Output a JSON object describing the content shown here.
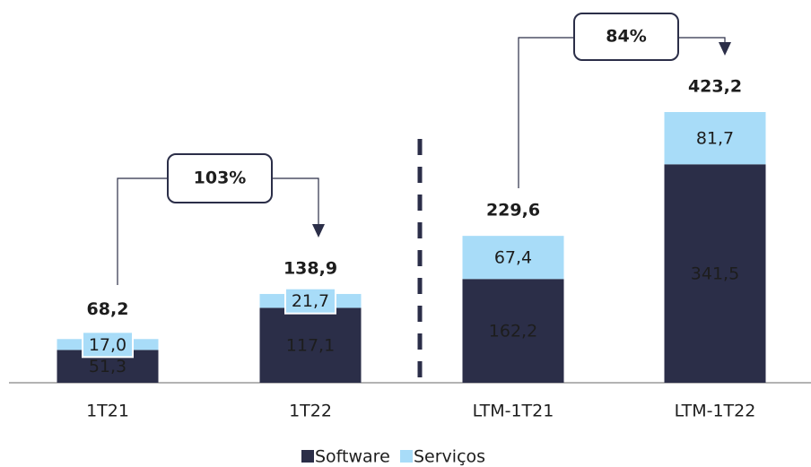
{
  "chart_data": {
    "type": "stacked_bar",
    "categories": [
      "1T21",
      "1T22",
      "LTM-1T21",
      "LTM-1T22"
    ],
    "series": [
      {
        "name": "Software",
        "color": "#2b2e48",
        "values": [
          51.3,
          117.1,
          162.2,
          341.5
        ],
        "value_labels": [
          "51,3",
          "117,1",
          "162,2",
          "341,5"
        ]
      },
      {
        "name": "Serviços",
        "color": "#a8dcf8",
        "values": [
          17.0,
          21.7,
          67.4,
          81.7
        ],
        "value_labels": [
          "17,0",
          "21,7",
          "67,4",
          "81,7"
        ]
      }
    ],
    "totals": {
      "values": [
        68.2,
        138.9,
        229.6,
        423.2
      ],
      "value_labels": [
        "68,2",
        "138,9",
        "229,6",
        "423,2"
      ]
    },
    "annotations": [
      "103%",
      "84%"
    ]
  }
}
